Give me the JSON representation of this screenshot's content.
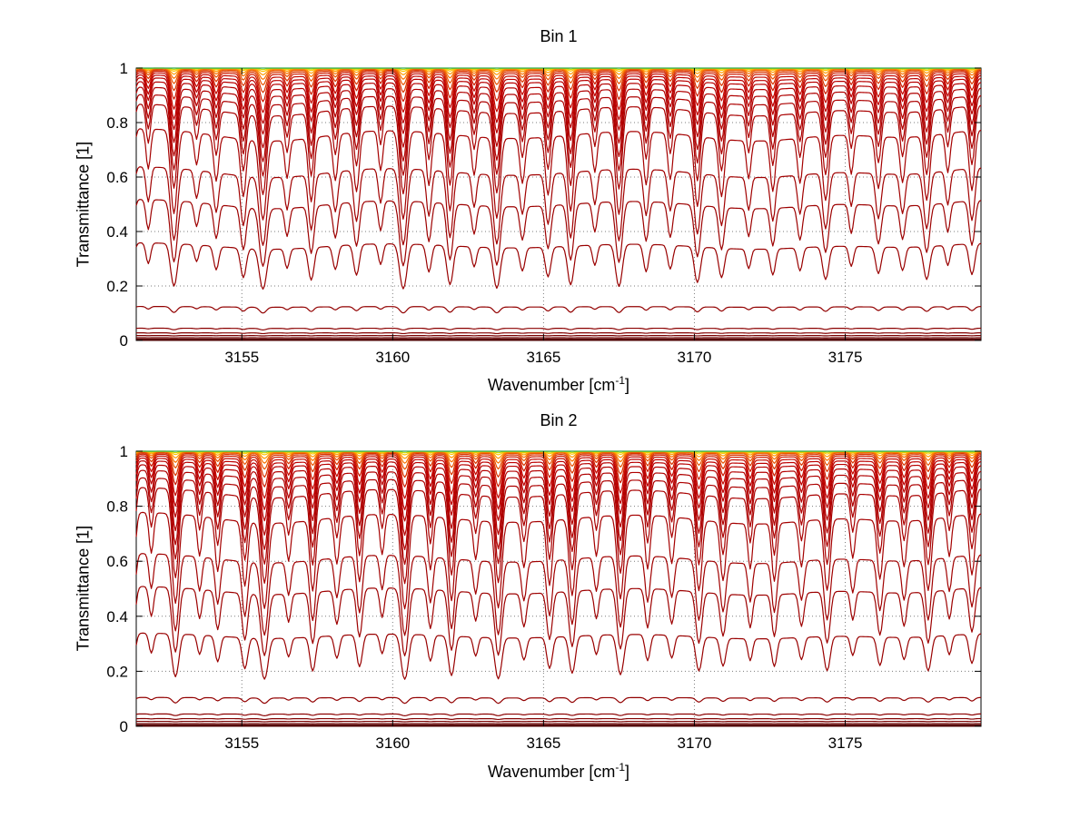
{
  "figure": {
    "background": "#ffffff"
  },
  "chart_data": [
    {
      "type": "line",
      "title": "Bin 1",
      "xlabel": {
        "pre": "Wavenumber [cm",
        "sup": "-1",
        "post": "]"
      },
      "ylabel": "Transmittance [1]",
      "xlim": [
        3151.5,
        3179.5
      ],
      "ylim": [
        0,
        1
      ],
      "xticks": [
        3155,
        3160,
        3165,
        3170,
        3175
      ],
      "yticks": [
        0,
        0.2,
        0.4,
        0.6,
        0.8,
        1
      ],
      "grid": true,
      "grid_style": "dotted",
      "grid_color": "#7d7d7d",
      "axis_color": "#000000",
      "background": "#ffffff",
      "legend": "none",
      "description": "Family of atmospheric layer transmittance spectra; lower layers near 0, upper layers near 1, dark red through orange-yellow-green by layer.",
      "absorption_lines": [
        [
          3151.3,
          0.1,
          0.13
        ],
        [
          3151.9,
          0.05,
          0.1
        ],
        [
          3152.75,
          0.12,
          0.14
        ],
        [
          3153.5,
          0.04,
          0.1
        ],
        [
          3154.15,
          0.06,
          0.11
        ],
        [
          3155.05,
          0.08,
          0.12
        ],
        [
          3155.7,
          0.12,
          0.15
        ],
        [
          3156.5,
          0.05,
          0.1
        ],
        [
          3157.3,
          0.09,
          0.12
        ],
        [
          3158.1,
          0.06,
          0.11
        ],
        [
          3158.8,
          0.08,
          0.12
        ],
        [
          3159.6,
          0.05,
          0.1
        ],
        [
          3160.35,
          0.13,
          0.15
        ],
        [
          3161.2,
          0.07,
          0.11
        ],
        [
          3161.9,
          0.11,
          0.13
        ],
        [
          3162.7,
          0.05,
          0.1
        ],
        [
          3163.45,
          0.12,
          0.14
        ],
        [
          3164.3,
          0.06,
          0.11
        ],
        [
          3165.15,
          0.08,
          0.12
        ],
        [
          3165.9,
          0.11,
          0.13
        ],
        [
          3166.7,
          0.05,
          0.1
        ],
        [
          3167.5,
          0.12,
          0.14
        ],
        [
          3168.4,
          0.07,
          0.11
        ],
        [
          3169.2,
          0.06,
          0.11
        ],
        [
          3170.1,
          0.1,
          0.13
        ],
        [
          3170.9,
          0.08,
          0.12
        ],
        [
          3171.8,
          0.05,
          0.1
        ],
        [
          3172.6,
          0.07,
          0.11
        ],
        [
          3173.5,
          0.06,
          0.11
        ],
        [
          3174.35,
          0.09,
          0.13
        ],
        [
          3175.2,
          0.05,
          0.1
        ],
        [
          3176.1,
          0.07,
          0.12
        ],
        [
          3176.9,
          0.06,
          0.11
        ],
        [
          3177.7,
          0.09,
          0.13
        ],
        [
          3178.4,
          0.05,
          0.1
        ],
        [
          3179.2,
          0.08,
          0.12
        ],
        [
          3156.0,
          0.015,
          2.5
        ],
        [
          3164.0,
          0.012,
          3.0
        ],
        [
          3172.0,
          0.015,
          2.8
        ],
        [
          3177.0,
          0.01,
          2.0
        ]
      ],
      "curves": [
        {
          "base": 0.003,
          "gain": 0.2,
          "color": "#550000",
          "width": 2.5
        },
        {
          "base": 0.01,
          "gain": 0.4,
          "color": "#6b0000",
          "width": 1.2
        },
        {
          "base": 0.018,
          "gain": 0.6,
          "color": "#7a0000",
          "width": 1.2
        },
        {
          "base": 0.028,
          "gain": 0.8,
          "color": "#830000",
          "width": 1.2
        },
        {
          "base": 0.045,
          "gain": 1.1,
          "color": "#8b0000",
          "width": 1.2
        },
        {
          "base": 0.125,
          "gain": 1.6,
          "color": "#920000",
          "width": 1.2
        },
        {
          "base": 0.36,
          "gain": 4.8,
          "color": "#990000",
          "width": 1.2
        },
        {
          "base": 0.52,
          "gain": 4.8,
          "color": "#9d0000",
          "width": 1.2
        },
        {
          "base": 0.64,
          "gain": 4.5,
          "color": "#a10000",
          "width": 1.2
        },
        {
          "base": 0.78,
          "gain": 4.2,
          "color": "#a50000",
          "width": 1.2
        },
        {
          "base": 0.87,
          "gain": 3.6,
          "color": "#a90000",
          "width": 1.2
        },
        {
          "base": 0.905,
          "gain": 3.0,
          "color": "#ad0000",
          "width": 1.2
        },
        {
          "base": 0.932,
          "gain": 2.6,
          "color": "#b00000",
          "width": 1.2
        },
        {
          "base": 0.952,
          "gain": 2.2,
          "color": "#b40000",
          "width": 1.2
        },
        {
          "base": 0.966,
          "gain": 1.8,
          "color": "#b80000",
          "width": 1.2
        },
        {
          "base": 0.976,
          "gain": 1.5,
          "color": "#bd0000",
          "width": 1.2
        },
        {
          "base": 0.984,
          "gain": 1.2,
          "color": "#c40800",
          "width": 1.2
        },
        {
          "base": 0.99,
          "gain": 0.9,
          "color": "#cc1a00",
          "width": 1.2
        },
        {
          "base": 0.994,
          "gain": 0.65,
          "color": "#d93400",
          "width": 1.2
        },
        {
          "base": 0.997,
          "gain": 0.45,
          "color": "#e85200",
          "width": 1.2
        },
        {
          "base": 0.9985,
          "gain": 0.3,
          "color": "#f97300",
          "width": 1.2
        },
        {
          "base": 0.9993,
          "gain": 0.18,
          "color": "#ff9900",
          "width": 1.2
        },
        {
          "base": 0.9997,
          "gain": 0.09,
          "color": "#ffc400",
          "width": 1.2
        },
        {
          "base": 1.0,
          "gain": 0.04,
          "color": "#cddc00",
          "width": 1.2
        },
        {
          "base": 1.0,
          "gain": 0.0,
          "color": "#2ea84f",
          "width": 1.2
        }
      ]
    },
    {
      "type": "line",
      "title": "Bin 2",
      "xlabel": {
        "pre": "Wavenumber [cm",
        "sup": "-1",
        "post": "]"
      },
      "ylabel": "Transmittance [1]",
      "xlim": [
        3151.5,
        3179.5
      ],
      "ylim": [
        0,
        1
      ],
      "xticks": [
        3155,
        3160,
        3165,
        3170,
        3175
      ],
      "yticks": [
        0,
        0.2,
        0.4,
        0.6,
        0.8,
        1
      ],
      "grid": true,
      "grid_style": "dotted",
      "grid_color": "#7d7d7d",
      "axis_color": "#000000",
      "background": "#ffffff",
      "legend": "none",
      "description": "Second bin of layer transmittance spectra over the same wavenumber window with slightly stronger line depths.",
      "absorption_lines": [
        [
          3151.35,
          0.11,
          0.13
        ],
        [
          3152.0,
          0.05,
          0.1
        ],
        [
          3152.8,
          0.13,
          0.14
        ],
        [
          3153.6,
          0.05,
          0.1
        ],
        [
          3154.2,
          0.07,
          0.11
        ],
        [
          3155.1,
          0.09,
          0.12
        ],
        [
          3155.75,
          0.13,
          0.15
        ],
        [
          3156.55,
          0.05,
          0.1
        ],
        [
          3157.35,
          0.1,
          0.12
        ],
        [
          3158.15,
          0.06,
          0.11
        ],
        [
          3158.9,
          0.09,
          0.12
        ],
        [
          3159.65,
          0.05,
          0.1
        ],
        [
          3160.4,
          0.14,
          0.15
        ],
        [
          3161.25,
          0.07,
          0.11
        ],
        [
          3161.95,
          0.12,
          0.13
        ],
        [
          3162.75,
          0.05,
          0.1
        ],
        [
          3163.5,
          0.13,
          0.14
        ],
        [
          3164.35,
          0.06,
          0.11
        ],
        [
          3165.2,
          0.09,
          0.12
        ],
        [
          3165.95,
          0.11,
          0.13
        ],
        [
          3166.75,
          0.05,
          0.1
        ],
        [
          3167.55,
          0.12,
          0.14
        ],
        [
          3168.45,
          0.07,
          0.11
        ],
        [
          3169.25,
          0.06,
          0.11
        ],
        [
          3170.15,
          0.1,
          0.13
        ],
        [
          3170.95,
          0.08,
          0.12
        ],
        [
          3171.85,
          0.06,
          0.1
        ],
        [
          3172.65,
          0.08,
          0.11
        ],
        [
          3173.55,
          0.06,
          0.11
        ],
        [
          3174.4,
          0.1,
          0.13
        ],
        [
          3175.25,
          0.05,
          0.1
        ],
        [
          3176.15,
          0.08,
          0.12
        ],
        [
          3176.95,
          0.06,
          0.11
        ],
        [
          3177.75,
          0.1,
          0.13
        ],
        [
          3178.45,
          0.05,
          0.1
        ],
        [
          3179.2,
          0.08,
          0.12
        ],
        [
          3156.0,
          0.013,
          2.5
        ],
        [
          3164.0,
          0.012,
          3.0
        ],
        [
          3172.0,
          0.014,
          2.8
        ],
        [
          3177.0,
          0.01,
          2.0
        ]
      ],
      "curves": [
        {
          "base": 0.003,
          "gain": 0.2,
          "color": "#550000",
          "width": 2.5
        },
        {
          "base": 0.01,
          "gain": 0.4,
          "color": "#6b0000",
          "width": 1.2
        },
        {
          "base": 0.018,
          "gain": 0.6,
          "color": "#7a0000",
          "width": 1.2
        },
        {
          "base": 0.028,
          "gain": 0.8,
          "color": "#830000",
          "width": 1.2
        },
        {
          "base": 0.045,
          "gain": 1.1,
          "color": "#8b0000",
          "width": 1.2
        },
        {
          "base": 0.105,
          "gain": 1.6,
          "color": "#920000",
          "width": 1.2
        },
        {
          "base": 0.34,
          "gain": 4.8,
          "color": "#990000",
          "width": 1.2
        },
        {
          "base": 0.51,
          "gain": 4.8,
          "color": "#9d0000",
          "width": 1.2
        },
        {
          "base": 0.63,
          "gain": 4.5,
          "color": "#a10000",
          "width": 1.2
        },
        {
          "base": 0.78,
          "gain": 4.2,
          "color": "#a50000",
          "width": 1.2
        },
        {
          "base": 0.87,
          "gain": 3.6,
          "color": "#a90000",
          "width": 1.2
        },
        {
          "base": 0.905,
          "gain": 3.0,
          "color": "#ad0000",
          "width": 1.2
        },
        {
          "base": 0.932,
          "gain": 2.6,
          "color": "#b00000",
          "width": 1.2
        },
        {
          "base": 0.952,
          "gain": 2.2,
          "color": "#b40000",
          "width": 1.2
        },
        {
          "base": 0.966,
          "gain": 1.8,
          "color": "#b80000",
          "width": 1.2
        },
        {
          "base": 0.976,
          "gain": 1.5,
          "color": "#bd0000",
          "width": 1.2
        },
        {
          "base": 0.984,
          "gain": 1.2,
          "color": "#c40800",
          "width": 1.2
        },
        {
          "base": 0.99,
          "gain": 0.9,
          "color": "#cc1a00",
          "width": 1.2
        },
        {
          "base": 0.994,
          "gain": 0.65,
          "color": "#d93400",
          "width": 1.2
        },
        {
          "base": 0.997,
          "gain": 0.45,
          "color": "#e85200",
          "width": 1.2
        },
        {
          "base": 0.9985,
          "gain": 0.3,
          "color": "#f97300",
          "width": 1.2
        },
        {
          "base": 0.9993,
          "gain": 0.18,
          "color": "#ff9900",
          "width": 1.2
        },
        {
          "base": 0.9997,
          "gain": 0.09,
          "color": "#ffc400",
          "width": 1.2
        },
        {
          "base": 1.0,
          "gain": 0.04,
          "color": "#cddc00",
          "width": 1.2
        },
        {
          "base": 1.0,
          "gain": 0.0,
          "color": "#2ea84f",
          "width": 1.2
        }
      ]
    }
  ]
}
